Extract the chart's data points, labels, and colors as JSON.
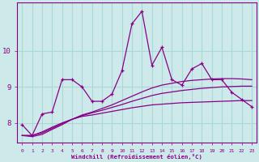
{
  "xlabel": "Windchill (Refroidissement éolien,°C)",
  "bg_color": "#cde9e9",
  "line_color": "#880088",
  "grid_color": "#aad8d8",
  "x_hours": [
    0,
    1,
    2,
    3,
    4,
    5,
    6,
    7,
    8,
    9,
    10,
    11,
    12,
    13,
    14,
    15,
    16,
    17,
    18,
    19,
    20,
    21,
    22,
    23
  ],
  "series_main": [
    7.95,
    7.65,
    8.25,
    8.3,
    9.2,
    9.2,
    9.0,
    8.6,
    8.6,
    8.8,
    9.45,
    10.75,
    11.1,
    9.6,
    10.1,
    9.2,
    9.05,
    9.5,
    9.65,
    9.2,
    9.2,
    8.85,
    8.65,
    8.45
  ],
  "series_smooth1": [
    7.65,
    7.65,
    7.75,
    7.88,
    8.0,
    8.1,
    8.18,
    8.22,
    8.27,
    8.32,
    8.37,
    8.42,
    8.46,
    8.5,
    8.52,
    8.54,
    8.56,
    8.57,
    8.58,
    8.59,
    8.6,
    8.61,
    8.62,
    8.62
  ],
  "series_smooth2": [
    7.65,
    7.65,
    7.72,
    7.85,
    7.98,
    8.1,
    8.2,
    8.28,
    8.35,
    8.43,
    8.51,
    8.6,
    8.68,
    8.76,
    8.82,
    8.86,
    8.9,
    8.93,
    8.96,
    8.98,
    9.0,
    9.01,
    9.02,
    9.02
  ],
  "series_smooth3": [
    7.65,
    7.62,
    7.68,
    7.82,
    7.95,
    8.1,
    8.22,
    8.3,
    8.4,
    8.5,
    8.62,
    8.74,
    8.86,
    8.97,
    9.05,
    9.1,
    9.15,
    9.18,
    9.2,
    9.22,
    9.23,
    9.23,
    9.22,
    9.2
  ],
  "ylim": [
    7.45,
    11.35
  ],
  "yticks": [
    8,
    9,
    10
  ],
  "xticks": [
    0,
    1,
    2,
    3,
    4,
    5,
    6,
    7,
    8,
    9,
    10,
    11,
    12,
    13,
    14,
    15,
    16,
    17,
    18,
    19,
    20,
    21,
    22,
    23
  ]
}
